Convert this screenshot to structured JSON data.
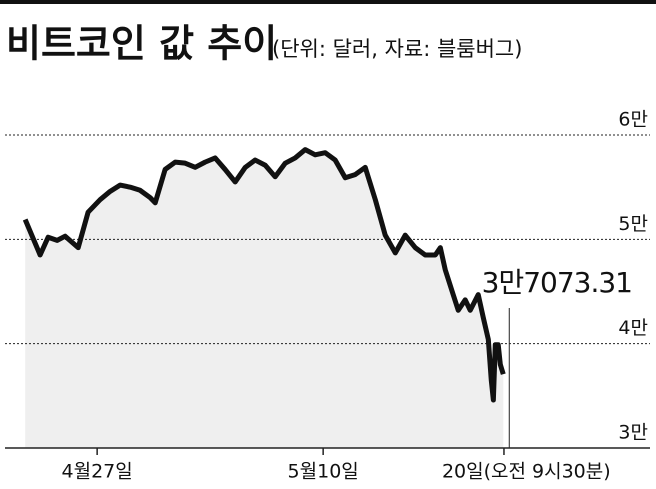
{
  "chart_data": {
    "type": "line",
    "title": "비트코인 값 추이",
    "subtitle": "(단위: 달러, 자료: 블룸버그)",
    "x": [
      22.86,
      23.72,
      24.18,
      24.7,
      25.16,
      25.91,
      26.48,
      27.17,
      27.75,
      28.32,
      28.9,
      29.47,
      30.05,
      30.34,
      30.91,
      31.49,
      32.06,
      32.64,
      33.21,
      33.79,
      34.36,
      34.94,
      35.52,
      36.09,
      36.67,
      37.24,
      37.82,
      38.39,
      38.97,
      39.54,
      40.12,
      40.69,
      41.27,
      41.84,
      42.42,
      43.0,
      43.57,
      44.15,
      44.72,
      45.3,
      45.87,
      46.45,
      46.74,
      47.02,
      47.48,
      47.77,
      48.17,
      48.46,
      48.92,
      49.21,
      49.5,
      49.67,
      49.79,
      49.9,
      50.07,
      50.19,
      50.36
    ],
    "values": [
      51900,
      48500,
      50200,
      49900,
      50300,
      49200,
      52600,
      53800,
      54600,
      55200,
      55000,
      54700,
      54000,
      53500,
      56700,
      57400,
      57300,
      56900,
      57400,
      57800,
      56700,
      55500,
      56900,
      57600,
      57100,
      56000,
      57300,
      57800,
      58600,
      58100,
      58300,
      57600,
      55900,
      56200,
      56900,
      53800,
      50400,
      48700,
      50400,
      49200,
      48500,
      48500,
      49200,
      47100,
      44700,
      43200,
      44200,
      43200,
      44700,
      42500,
      40400,
      36500,
      34600,
      39900,
      39900,
      38000,
      37073.31
    ],
    "value_labels": [
      null,
      null,
      null,
      null,
      null,
      null,
      null,
      null,
      null,
      null,
      null,
      null,
      null,
      null,
      null,
      null,
      null,
      null,
      null,
      null,
      null,
      null,
      null,
      null,
      null,
      null,
      null,
      null,
      null,
      null,
      null,
      null,
      null,
      null,
      null,
      null,
      null,
      null,
      null,
      null,
      null,
      null,
      null,
      null,
      null,
      null,
      null,
      null,
      null,
      null,
      null,
      null,
      null,
      null,
      null,
      null,
      "3만7073.31"
    ],
    "color": "#111111",
    "fill": "#efefef",
    "xlim": [
      21.7,
      58.8
    ],
    "xticks": [
      {
        "value": 27,
        "label": "4월27일"
      },
      {
        "value": 40,
        "label": "5월10일"
      },
      {
        "value": 50.4,
        "label": "20일(오전 9시30분)"
      }
    ],
    "ylim": [
      30000,
      60000
    ],
    "yticks": [
      {
        "value": 30000,
        "label": "3만"
      },
      {
        "value": 40000,
        "label": "4만"
      },
      {
        "value": 50000,
        "label": "5만"
      },
      {
        "value": 60000,
        "label": "6만"
      }
    ],
    "grid": true
  }
}
